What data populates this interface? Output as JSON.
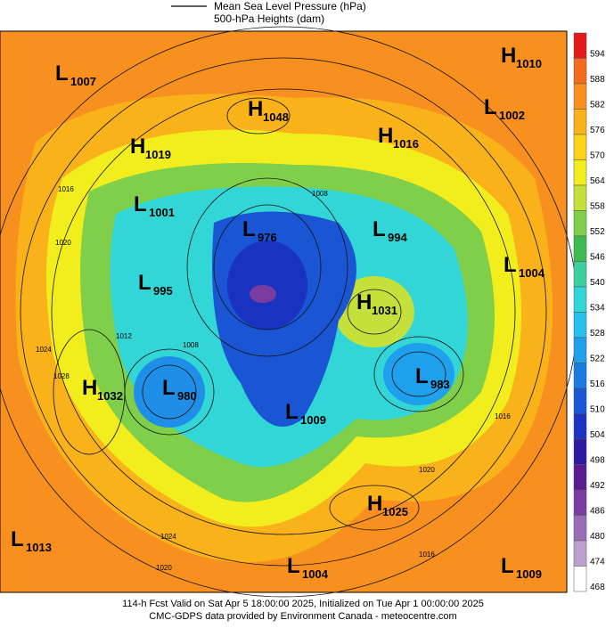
{
  "legend": {
    "line_label": "Mean Sea Level Pressure (hPa)",
    "fill_label": "500-hPa Heights (dam)"
  },
  "colorbar": {
    "ticks": [
      594,
      588,
      582,
      576,
      570,
      564,
      558,
      552,
      546,
      540,
      534,
      528,
      522,
      516,
      510,
      504,
      498,
      492,
      486,
      480,
      474,
      468
    ],
    "colors": [
      "#e31a1c",
      "#f46d1f",
      "#f7901e",
      "#f9b21a",
      "#fbd31a",
      "#f2ee1e",
      "#c5e03a",
      "#7fcf4a",
      "#3dbb4e",
      "#3ccfa0",
      "#33d6d6",
      "#28c0ec",
      "#1ea0ec",
      "#1a7ce0",
      "#1a56d4",
      "#1a32c0",
      "#2a1aa0",
      "#5a1a90",
      "#7a3ca0",
      "#9a6cb8",
      "#bca0d0",
      "#ffffff"
    ]
  },
  "centers": [
    {
      "kind": "L",
      "pressure": 1007
    },
    {
      "kind": "H",
      "pressure": 1010
    },
    {
      "kind": "H",
      "pressure": 1048
    },
    {
      "kind": "L",
      "pressure": 1002
    },
    {
      "kind": "H",
      "pressure": 1016
    },
    {
      "kind": "H",
      "pressure": 1019
    },
    {
      "kind": "L",
      "pressure": 1001
    },
    {
      "kind": "L",
      "pressure": 976
    },
    {
      "kind": "L",
      "pressure": 994
    },
    {
      "kind": "L",
      "pressure": 1004
    },
    {
      "kind": "L",
      "pressure": 995
    },
    {
      "kind": "H",
      "pressure": 1031
    },
    {
      "kind": "H",
      "pressure": 1032
    },
    {
      "kind": "L",
      "pressure": 980
    },
    {
      "kind": "L",
      "pressure": 983
    },
    {
      "kind": "L",
      "pressure": 1009
    },
    {
      "kind": "H",
      "pressure": 1025
    },
    {
      "kind": "L",
      "pressure": 1013
    },
    {
      "kind": "L",
      "pressure": 1004
    },
    {
      "kind": "L",
      "pressure": 1009
    }
  ],
  "isobar_labels": [
    1016,
    1020,
    1024,
    1028,
    1008,
    1012,
    1008,
    1016,
    1020,
    1024,
    1020,
    1016
  ],
  "footer": {
    "line1": "114-h Fcst Valid on Sat Apr  5 18:00:00 2025, Initialized on Tue Apr  1 00:00:00 2025",
    "line2": "CMC-GDPS data provided by Environment Canada - meteocentre.com"
  }
}
